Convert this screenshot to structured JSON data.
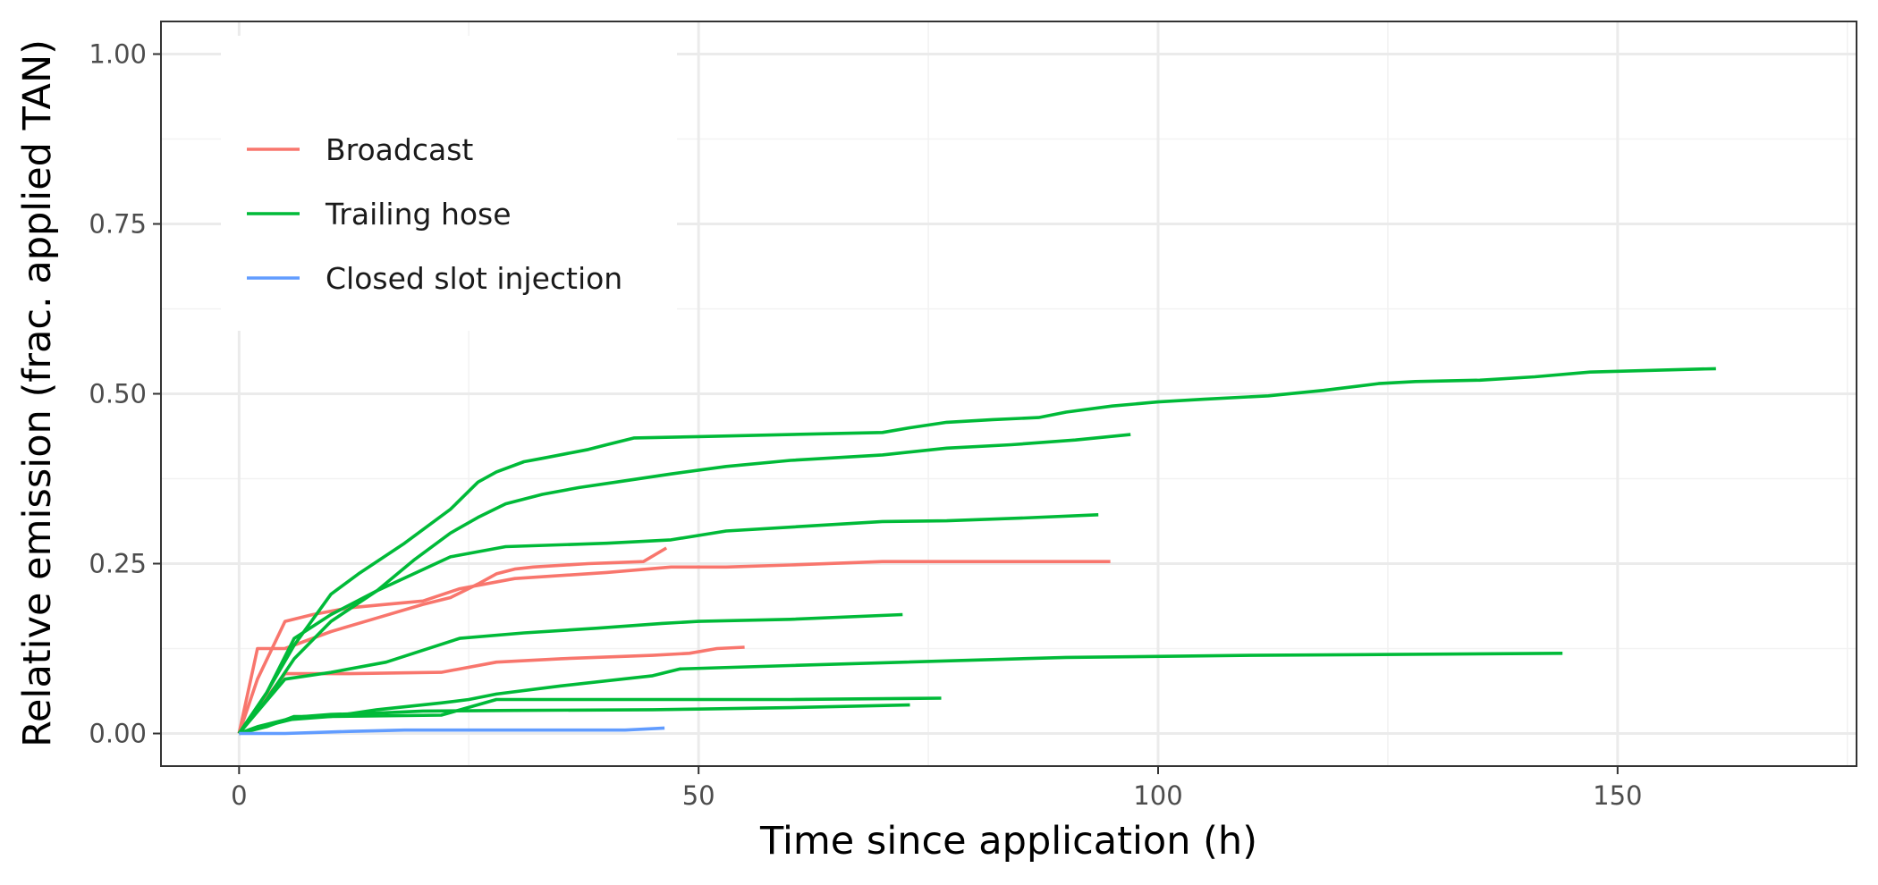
{
  "chart_data": {
    "type": "line",
    "title": "",
    "xlabel": "Time since application (h)",
    "ylabel": "Relative emission (frac. applied TAN)",
    "xlim": [
      -8.5,
      176
    ],
    "ylim": [
      -0.048,
      1.048
    ],
    "x_ticks": [
      0,
      50,
      100,
      150
    ],
    "x_tick_labels": [
      "0",
      "50",
      "100",
      "150"
    ],
    "y_ticks": [
      0,
      0.25,
      0.5,
      0.75,
      1.0
    ],
    "y_tick_labels": [
      "0.00",
      "0.25",
      "0.50",
      "0.75",
      "1.00"
    ],
    "grid": true,
    "legend_position": "top-left",
    "legend": [
      {
        "name": "Broadcast",
        "color": "#F8766D"
      },
      {
        "name": "Trailing hose",
        "color": "#00BA38"
      },
      {
        "name": "Closed slot injection",
        "color": "#619CFF"
      }
    ],
    "series": [
      {
        "group": "Broadcast",
        "color": "#F8766D",
        "points": [
          [
            0,
            0
          ],
          [
            2,
            0.125
          ],
          [
            5,
            0.125
          ],
          [
            10,
            0.15
          ],
          [
            15,
            0.17
          ],
          [
            20,
            0.19
          ],
          [
            23,
            0.2
          ],
          [
            26,
            0.22
          ],
          [
            28,
            0.235
          ],
          [
            30,
            0.242
          ],
          [
            32,
            0.245
          ],
          [
            38,
            0.25
          ],
          [
            44,
            0.253
          ],
          [
            46.5,
            0.273
          ]
        ]
      },
      {
        "group": "Broadcast",
        "color": "#F8766D",
        "points": [
          [
            0,
            0
          ],
          [
            2,
            0.08
          ],
          [
            5,
            0.165
          ],
          [
            8,
            0.175
          ],
          [
            12,
            0.185
          ],
          [
            16,
            0.19
          ],
          [
            20,
            0.195
          ],
          [
            24,
            0.213
          ],
          [
            30,
            0.228
          ],
          [
            40,
            0.237
          ],
          [
            47,
            0.245
          ],
          [
            53,
            0.245
          ],
          [
            60,
            0.248
          ],
          [
            70,
            0.253
          ],
          [
            80,
            0.253
          ],
          [
            94.8,
            0.253
          ]
        ]
      },
      {
        "group": "Broadcast",
        "color": "#F8766D",
        "points": [
          [
            0,
            0
          ],
          [
            5,
            0.088
          ],
          [
            12,
            0.088
          ],
          [
            22,
            0.09
          ],
          [
            28,
            0.105
          ],
          [
            35,
            0.11
          ],
          [
            45,
            0.115
          ],
          [
            49,
            0.118
          ],
          [
            52,
            0.125
          ],
          [
            55,
            0.127
          ]
        ]
      },
      {
        "group": "Trailing hose",
        "color": "#00BA38",
        "points": [
          [
            0,
            0
          ],
          [
            3,
            0.06
          ],
          [
            6,
            0.13
          ],
          [
            10,
            0.205
          ],
          [
            13,
            0.235
          ],
          [
            18,
            0.28
          ],
          [
            23,
            0.33
          ],
          [
            26,
            0.37
          ],
          [
            28,
            0.385
          ],
          [
            31,
            0.4
          ],
          [
            33,
            0.405
          ],
          [
            38,
            0.418
          ],
          [
            40,
            0.425
          ],
          [
            43,
            0.435
          ],
          [
            50,
            0.437
          ],
          [
            70,
            0.443
          ],
          [
            73,
            0.45
          ],
          [
            77,
            0.458
          ],
          [
            82,
            0.462
          ],
          [
            87,
            0.465
          ],
          [
            90,
            0.473
          ],
          [
            95,
            0.482
          ],
          [
            100,
            0.488
          ],
          [
            105,
            0.492
          ],
          [
            112,
            0.497
          ],
          [
            118,
            0.505
          ],
          [
            124,
            0.515
          ],
          [
            128,
            0.518
          ],
          [
            135,
            0.52
          ],
          [
            141,
            0.525
          ],
          [
            147,
            0.532
          ],
          [
            155,
            0.535
          ],
          [
            160.7,
            0.537
          ]
        ]
      },
      {
        "group": "Trailing hose",
        "color": "#00BA38",
        "points": [
          [
            0,
            0
          ],
          [
            3,
            0.05
          ],
          [
            6,
            0.11
          ],
          [
            10,
            0.165
          ],
          [
            15,
            0.21
          ],
          [
            19,
            0.255
          ],
          [
            23,
            0.295
          ],
          [
            26,
            0.318
          ],
          [
            29,
            0.338
          ],
          [
            33,
            0.352
          ],
          [
            37,
            0.362
          ],
          [
            42,
            0.372
          ],
          [
            47,
            0.382
          ],
          [
            53,
            0.393
          ],
          [
            60,
            0.402
          ],
          [
            70,
            0.41
          ],
          [
            77,
            0.42
          ],
          [
            84,
            0.425
          ],
          [
            91,
            0.432
          ],
          [
            97,
            0.44
          ]
        ]
      },
      {
        "group": "Trailing hose",
        "color": "#00BA38",
        "points": [
          [
            0,
            0
          ],
          [
            3,
            0.06
          ],
          [
            6,
            0.14
          ],
          [
            10,
            0.175
          ],
          [
            15,
            0.21
          ],
          [
            23,
            0.26
          ],
          [
            29,
            0.275
          ],
          [
            40,
            0.28
          ],
          [
            47,
            0.285
          ],
          [
            53,
            0.298
          ],
          [
            70,
            0.312
          ],
          [
            77,
            0.313
          ],
          [
            85,
            0.317
          ],
          [
            93.5,
            0.322
          ]
        ]
      },
      {
        "group": "Trailing hose",
        "color": "#00BA38",
        "points": [
          [
            0,
            0
          ],
          [
            5,
            0.08
          ],
          [
            10,
            0.09
          ],
          [
            16,
            0.105
          ],
          [
            24,
            0.14
          ],
          [
            31,
            0.148
          ],
          [
            39,
            0.155
          ],
          [
            46,
            0.162
          ],
          [
            50,
            0.165
          ],
          [
            60,
            0.168
          ],
          [
            72.2,
            0.175
          ]
        ]
      },
      {
        "group": "Trailing hose",
        "color": "#00BA38",
        "points": [
          [
            0,
            0
          ],
          [
            2,
            0.01
          ],
          [
            5,
            0.02
          ],
          [
            10,
            0.025
          ],
          [
            15,
            0.035
          ],
          [
            22,
            0.045
          ],
          [
            25,
            0.05
          ],
          [
            28,
            0.058
          ],
          [
            35,
            0.07
          ],
          [
            45,
            0.085
          ],
          [
            48,
            0.095
          ],
          [
            60,
            0.1
          ],
          [
            90,
            0.112
          ],
          [
            110,
            0.115
          ],
          [
            144,
            0.118
          ]
        ]
      },
      {
        "group": "Trailing hose",
        "color": "#00BA38",
        "points": [
          [
            0,
            0
          ],
          [
            3,
            0.01
          ],
          [
            6,
            0.025
          ],
          [
            10,
            0.025
          ],
          [
            22,
            0.027
          ],
          [
            28,
            0.05
          ],
          [
            50,
            0.05
          ],
          [
            60,
            0.05
          ],
          [
            76.4,
            0.052
          ]
        ]
      },
      {
        "group": "Trailing hose",
        "color": "#00BA38",
        "points": [
          [
            0,
            0
          ],
          [
            4,
            0.015
          ],
          [
            7,
            0.025
          ],
          [
            10,
            0.028
          ],
          [
            15,
            0.03
          ],
          [
            20,
            0.033
          ],
          [
            30,
            0.034
          ],
          [
            45,
            0.035
          ],
          [
            50,
            0.036
          ],
          [
            60,
            0.038
          ],
          [
            73,
            0.042
          ]
        ]
      },
      {
        "group": "Closed slot injection",
        "color": "#619CFF",
        "points": [
          [
            0,
            0
          ],
          [
            5,
            0.0
          ],
          [
            12,
            0.003
          ],
          [
            18,
            0.005
          ],
          [
            25,
            0.005
          ],
          [
            35,
            0.005
          ],
          [
            42,
            0.005
          ],
          [
            46.3,
            0.008
          ]
        ]
      }
    ]
  }
}
